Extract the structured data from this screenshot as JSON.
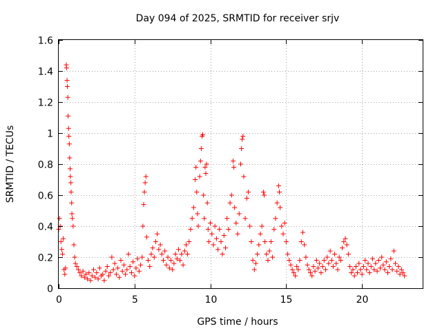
{
  "chart_data": {
    "type": "scatter",
    "title": "Day 094 of 2025, SRMTID for receiver srjv",
    "xlabel": "GPS time / hours",
    "ylabel": "SRMTID / TECUs",
    "xlim": [
      0,
      24
    ],
    "ylim": [
      0,
      1.6
    ],
    "x_ticks": [
      "0",
      "5",
      "10",
      "15",
      "20"
    ],
    "y_ticks": [
      "0",
      "0.2",
      "0.4",
      "0.6",
      "0.8",
      "1",
      "1.2",
      "1.4",
      "1.6"
    ],
    "grid": true,
    "marker": "plus",
    "color": "#ff0000",
    "series": [
      {
        "name": "srjv",
        "points": [
          [
            0.0,
            0.38
          ],
          [
            0.05,
            0.45
          ],
          [
            0.1,
            0.4
          ],
          [
            0.15,
            0.3
          ],
          [
            0.2,
            0.25
          ],
          [
            0.25,
            0.22
          ],
          [
            0.3,
            0.32
          ],
          [
            0.35,
            0.12
          ],
          [
            0.4,
            0.09
          ],
          [
            0.45,
            0.13
          ],
          [
            0.5,
            1.44
          ],
          [
            0.52,
            1.42
          ],
          [
            0.55,
            1.34
          ],
          [
            0.57,
            1.3
          ],
          [
            0.6,
            1.23
          ],
          [
            0.62,
            1.11
          ],
          [
            0.65,
            1.03
          ],
          [
            0.67,
            0.98
          ],
          [
            0.7,
            0.93
          ],
          [
            0.72,
            0.84
          ],
          [
            0.75,
            0.77
          ],
          [
            0.77,
            0.72
          ],
          [
            0.8,
            0.68
          ],
          [
            0.82,
            0.62
          ],
          [
            0.85,
            0.55
          ],
          [
            0.87,
            0.48
          ],
          [
            0.9,
            0.45
          ],
          [
            0.95,
            0.4
          ],
          [
            1.0,
            0.28
          ],
          [
            1.05,
            0.2
          ],
          [
            1.1,
            0.16
          ],
          [
            1.2,
            0.14
          ],
          [
            1.3,
            0.12
          ],
          [
            1.4,
            0.1
          ],
          [
            1.5,
            0.08
          ],
          [
            1.6,
            0.11
          ],
          [
            1.7,
            0.07
          ],
          [
            1.8,
            0.09
          ],
          [
            1.9,
            0.06
          ],
          [
            2.0,
            0.1
          ],
          [
            2.1,
            0.05
          ],
          [
            2.2,
            0.08
          ],
          [
            2.3,
            0.12
          ],
          [
            2.4,
            0.07
          ],
          [
            2.5,
            0.1
          ],
          [
            2.6,
            0.06
          ],
          [
            2.7,
            0.13
          ],
          [
            2.8,
            0.08
          ],
          [
            2.9,
            0.09
          ],
          [
            3.0,
            0.05
          ],
          [
            3.1,
            0.11
          ],
          [
            3.2,
            0.14
          ],
          [
            3.3,
            0.08
          ],
          [
            3.4,
            0.1
          ],
          [
            3.5,
            0.2
          ],
          [
            3.6,
            0.12
          ],
          [
            3.7,
            0.16
          ],
          [
            3.8,
            0.09
          ],
          [
            3.9,
            0.13
          ],
          [
            4.0,
            0.07
          ],
          [
            4.1,
            0.18
          ],
          [
            4.2,
            0.11
          ],
          [
            4.3,
            0.15
          ],
          [
            4.4,
            0.09
          ],
          [
            4.5,
            0.12
          ],
          [
            4.6,
            0.22
          ],
          [
            4.7,
            0.14
          ],
          [
            4.8,
            0.1
          ],
          [
            4.9,
            0.17
          ],
          [
            5.0,
            0.08
          ],
          [
            5.1,
            0.13
          ],
          [
            5.2,
            0.19
          ],
          [
            5.3,
            0.11
          ],
          [
            5.4,
            0.15
          ],
          [
            5.5,
            0.2
          ],
          [
            5.55,
            0.4
          ],
          [
            5.6,
            0.54
          ],
          [
            5.65,
            0.62
          ],
          [
            5.7,
            0.68
          ],
          [
            5.75,
            0.72
          ],
          [
            5.8,
            0.33
          ],
          [
            5.9,
            0.18
          ],
          [
            6.0,
            0.14
          ],
          [
            6.1,
            0.22
          ],
          [
            6.2,
            0.26
          ],
          [
            6.3,
            0.2
          ],
          [
            6.4,
            0.3
          ],
          [
            6.5,
            0.35
          ],
          [
            6.6,
            0.25
          ],
          [
            6.7,
            0.28
          ],
          [
            6.8,
            0.22
          ],
          [
            6.9,
            0.18
          ],
          [
            7.0,
            0.24
          ],
          [
            7.1,
            0.15
          ],
          [
            7.2,
            0.2
          ],
          [
            7.3,
            0.13
          ],
          [
            7.4,
            0.18
          ],
          [
            7.5,
            0.12
          ],
          [
            7.6,
            0.16
          ],
          [
            7.7,
            0.22
          ],
          [
            7.8,
            0.19
          ],
          [
            7.9,
            0.25
          ],
          [
            8.0,
            0.18
          ],
          [
            8.1,
            0.22
          ],
          [
            8.2,
            0.15
          ],
          [
            8.3,
            0.24
          ],
          [
            8.4,
            0.28
          ],
          [
            8.5,
            0.22
          ],
          [
            8.6,
            0.3
          ],
          [
            8.7,
            0.38
          ],
          [
            8.8,
            0.45
          ],
          [
            8.9,
            0.52
          ],
          [
            9.0,
            0.7
          ],
          [
            9.05,
            0.78
          ],
          [
            9.1,
            0.62
          ],
          [
            9.15,
            0.48
          ],
          [
            9.2,
            0.4
          ],
          [
            9.3,
            0.72
          ],
          [
            9.35,
            0.82
          ],
          [
            9.4,
            0.9
          ],
          [
            9.45,
            0.98
          ],
          [
            9.5,
            0.99
          ],
          [
            9.55,
            0.6
          ],
          [
            9.6,
            0.45
          ],
          [
            9.65,
            0.78
          ],
          [
            9.7,
            0.74
          ],
          [
            9.75,
            0.8
          ],
          [
            9.8,
            0.55
          ],
          [
            9.85,
            0.38
          ],
          [
            9.9,
            0.3
          ],
          [
            10.0,
            0.42
          ],
          [
            10.1,
            0.35
          ],
          [
            10.2,
            0.28
          ],
          [
            10.3,
            0.4
          ],
          [
            10.4,
            0.32
          ],
          [
            10.5,
            0.25
          ],
          [
            10.6,
            0.38
          ],
          [
            10.7,
            0.3
          ],
          [
            10.8,
            0.22
          ],
          [
            10.9,
            0.34
          ],
          [
            11.0,
            0.26
          ],
          [
            11.1,
            0.45
          ],
          [
            11.2,
            0.38
          ],
          [
            11.3,
            0.55
          ],
          [
            11.4,
            0.6
          ],
          [
            11.5,
            0.82
          ],
          [
            11.55,
            0.78
          ],
          [
            11.6,
            0.52
          ],
          [
            11.7,
            0.42
          ],
          [
            11.8,
            0.35
          ],
          [
            11.9,
            0.48
          ],
          [
            12.0,
            0.8
          ],
          [
            12.05,
            0.9
          ],
          [
            12.1,
            0.96
          ],
          [
            12.15,
            0.98
          ],
          [
            12.2,
            0.72
          ],
          [
            12.3,
            0.45
          ],
          [
            12.4,
            0.58
          ],
          [
            12.5,
            0.62
          ],
          [
            12.6,
            0.4
          ],
          [
            12.7,
            0.3
          ],
          [
            12.8,
            0.18
          ],
          [
            12.9,
            0.12
          ],
          [
            13.0,
            0.16
          ],
          [
            13.1,
            0.22
          ],
          [
            13.2,
            0.28
          ],
          [
            13.3,
            0.35
          ],
          [
            13.4,
            0.4
          ],
          [
            13.5,
            0.62
          ],
          [
            13.55,
            0.6
          ],
          [
            13.6,
            0.3
          ],
          [
            13.7,
            0.22
          ],
          [
            13.8,
            0.18
          ],
          [
            13.9,
            0.24
          ],
          [
            14.0,
            0.3
          ],
          [
            14.1,
            0.2
          ],
          [
            14.2,
            0.38
          ],
          [
            14.3,
            0.45
          ],
          [
            14.4,
            0.55
          ],
          [
            14.5,
            0.66
          ],
          [
            14.55,
            0.62
          ],
          [
            14.6,
            0.52
          ],
          [
            14.7,
            0.4
          ],
          [
            14.8,
            0.35
          ],
          [
            14.9,
            0.42
          ],
          [
            15.0,
            0.3
          ],
          [
            15.1,
            0.22
          ],
          [
            15.2,
            0.18
          ],
          [
            15.3,
            0.15
          ],
          [
            15.4,
            0.12
          ],
          [
            15.5,
            0.1
          ],
          [
            15.6,
            0.08
          ],
          [
            15.7,
            0.14
          ],
          [
            15.8,
            0.12
          ],
          [
            15.9,
            0.18
          ],
          [
            16.0,
            0.3
          ],
          [
            16.1,
            0.36
          ],
          [
            16.2,
            0.28
          ],
          [
            16.3,
            0.2
          ],
          [
            16.4,
            0.15
          ],
          [
            16.5,
            0.12
          ],
          [
            16.6,
            0.1
          ],
          [
            16.7,
            0.08
          ],
          [
            16.8,
            0.14
          ],
          [
            16.9,
            0.11
          ],
          [
            17.0,
            0.18
          ],
          [
            17.1,
            0.13
          ],
          [
            17.2,
            0.16
          ],
          [
            17.3,
            0.1
          ],
          [
            17.4,
            0.14
          ],
          [
            17.5,
            0.18
          ],
          [
            17.6,
            0.12
          ],
          [
            17.7,
            0.2
          ],
          [
            17.8,
            0.16
          ],
          [
            17.9,
            0.24
          ],
          [
            18.0,
            0.18
          ],
          [
            18.1,
            0.14
          ],
          [
            18.2,
            0.22
          ],
          [
            18.3,
            0.16
          ],
          [
            18.4,
            0.12
          ],
          [
            18.5,
            0.2
          ],
          [
            18.6,
            0.18
          ],
          [
            18.7,
            0.26
          ],
          [
            18.8,
            0.3
          ],
          [
            18.9,
            0.32
          ],
          [
            19.0,
            0.28
          ],
          [
            19.1,
            0.22
          ],
          [
            19.2,
            0.14
          ],
          [
            19.3,
            0.1
          ],
          [
            19.4,
            0.12
          ],
          [
            19.5,
            0.08
          ],
          [
            19.6,
            0.14
          ],
          [
            19.7,
            0.1
          ],
          [
            19.8,
            0.16
          ],
          [
            19.9,
            0.12
          ],
          [
            20.0,
            0.09
          ],
          [
            20.1,
            0.14
          ],
          [
            20.2,
            0.18
          ],
          [
            20.3,
            0.12
          ],
          [
            20.4,
            0.16
          ],
          [
            20.5,
            0.1
          ],
          [
            20.6,
            0.14
          ],
          [
            20.7,
            0.19
          ],
          [
            20.8,
            0.12
          ],
          [
            20.9,
            0.16
          ],
          [
            21.0,
            0.11
          ],
          [
            21.1,
            0.18
          ],
          [
            21.2,
            0.13
          ],
          [
            21.3,
            0.2
          ],
          [
            21.4,
            0.15
          ],
          [
            21.5,
            0.12
          ],
          [
            21.6,
            0.17
          ],
          [
            21.7,
            0.1
          ],
          [
            21.8,
            0.14
          ],
          [
            21.9,
            0.19
          ],
          [
            22.0,
            0.12
          ],
          [
            22.1,
            0.24
          ],
          [
            22.2,
            0.16
          ],
          [
            22.3,
            0.11
          ],
          [
            22.4,
            0.14
          ],
          [
            22.5,
            0.09
          ],
          [
            22.6,
            0.12
          ],
          [
            22.7,
            0.1
          ],
          [
            22.8,
            0.08
          ]
        ]
      }
    ]
  }
}
